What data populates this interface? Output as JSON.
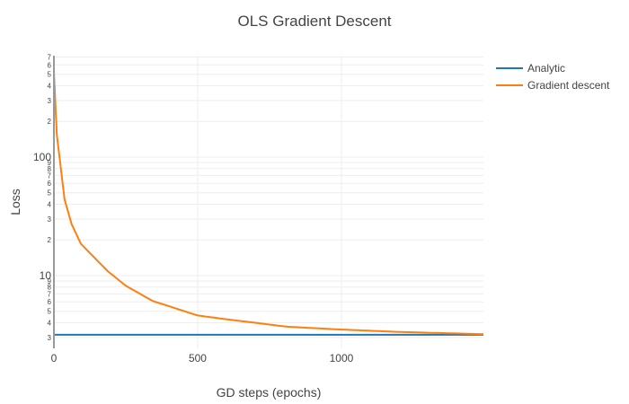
{
  "chart_data": {
    "type": "line",
    "title": "OLS Gradient Descent",
    "xlabel": "GD steps (epochs)",
    "ylabel": "Loss",
    "xlim": [
      0,
      1494
    ],
    "ylim": [
      2.43,
      718
    ],
    "yscale": "log",
    "grid": true,
    "legend_position": "right-top",
    "x_ticks": [
      0,
      500,
      1000
    ],
    "x_tick_labels": [
      "0",
      "500",
      "1000"
    ],
    "y_ticks": [
      3,
      4,
      5,
      6,
      7,
      8,
      9,
      10,
      20,
      30,
      40,
      50,
      60,
      70,
      80,
      90,
      100,
      200,
      300,
      400,
      500,
      600,
      700
    ],
    "y_tick_labels": [
      "3",
      "4",
      "5",
      "6",
      "7",
      "8",
      "9",
      "10",
      "2",
      "3",
      "4",
      "5",
      "6",
      "7",
      "8",
      "9",
      "100",
      "2",
      "3",
      "4",
      "5",
      "6",
      "7"
    ],
    "series": [
      {
        "name": "Analytic",
        "color": "#1f77b4",
        "x": [
          0,
          1494
        ],
        "y": [
          3.16,
          3.16
        ]
      },
      {
        "name": "Gradient descent",
        "color": "#ff7f0e",
        "x": [
          0,
          10,
          37,
          62,
          94,
          187,
          250,
          344,
          500,
          625,
          812,
          1000,
          1187,
          1494
        ],
        "y": [
          525,
          155,
          44,
          27,
          18.5,
          10.9,
          8.2,
          6.1,
          4.6,
          4.2,
          3.7,
          3.5,
          3.35,
          3.2
        ]
      }
    ]
  },
  "legend": {
    "items": [
      {
        "label": "Analytic",
        "color": "#1f77b4"
      },
      {
        "label": "Gradient descent",
        "color": "#ff7f0e"
      }
    ]
  },
  "colors": {
    "axis": "#999999",
    "grid": "#eeeeee",
    "text": "#444444"
  }
}
